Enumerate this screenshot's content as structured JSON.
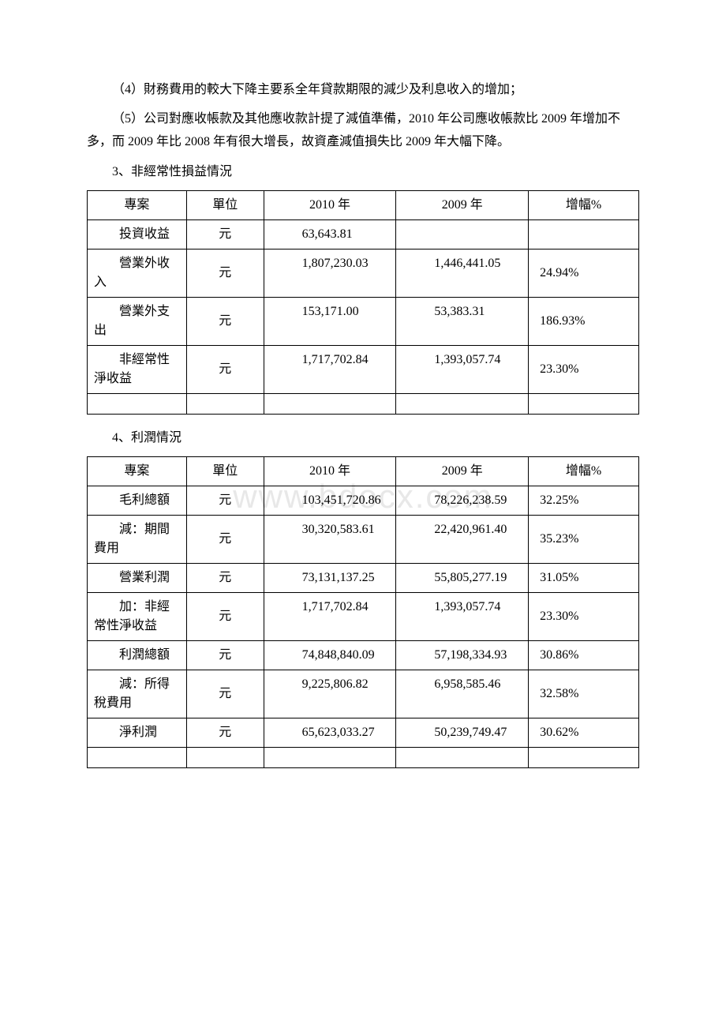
{
  "paragraphs": {
    "p4": "（4）財務費用的較大下降主要系全年貸款期限的減少及利息收入的增加；",
    "p5": "（5）公司對應收帳款及其他應收款計提了減值準備，2010 年公司應收帳款比 2009 年增加不多，而 2009 年比 2008 年有很大增長，故資產減值損失比 2009 年大幅下降。"
  },
  "section3": {
    "title": "3、非經常性損益情況",
    "headers": [
      "專案",
      "單位",
      "2010 年",
      "2009 年",
      "增幅%"
    ],
    "rows": [
      {
        "item": "投資收益",
        "unit": "元",
        "y2010": "63,643.81",
        "y2009": "",
        "pct": ""
      },
      {
        "item": "營業外收入",
        "unit": "元",
        "y2010": "1,807,230.03",
        "y2009": "1,446,441.05",
        "pct": "24.94%"
      },
      {
        "item": "營業外支出",
        "unit": "元",
        "y2010": "153,171.00",
        "y2009": "53,383.31",
        "pct": "186.93%"
      },
      {
        "item": "非經常性淨收益",
        "unit": "元",
        "y2010": "1,717,702.84",
        "y2009": "1,393,057.74",
        "pct": "23.30%"
      }
    ]
  },
  "section4": {
    "title": "4、利潤情況",
    "headers": [
      "專案",
      "單位",
      "2010 年",
      "2009 年",
      "增幅%"
    ],
    "rows": [
      {
        "item": "毛利總額",
        "unit": "元",
        "y2010": "103,451,720.86",
        "y2009": "78,226,238.59",
        "pct": "32.25%"
      },
      {
        "item": "減：期間費用",
        "unit": "元",
        "y2010": "30,320,583.61",
        "y2009": "22,420,961.40",
        "pct": "35.23%"
      },
      {
        "item": "營業利潤",
        "unit": "元",
        "y2010": "73,131,137.25",
        "y2009": "55,805,277.19",
        "pct": "31.05%"
      },
      {
        "item": "加：非經常性淨收益",
        "unit": "元",
        "y2010": "1,717,702.84",
        "y2009": "1,393,057.74",
        "pct": "23.30%"
      },
      {
        "item": "利潤總額",
        "unit": "元",
        "y2010": "74,848,840.09",
        "y2009": "57,198,334.93",
        "pct": "30.86%"
      },
      {
        "item": "減：所得稅費用",
        "unit": "元",
        "y2010": "9,225,806.82",
        "y2009": "6,958,585.46",
        "pct": "32.58%"
      },
      {
        "item": "淨利潤",
        "unit": "元",
        "y2010": "65,623,033.27",
        "y2009": "50,239,749.47",
        "pct": "30.62%"
      }
    ]
  },
  "watermark": "www.bdocx.com",
  "colors": {
    "text": "#000000",
    "background": "#ffffff",
    "border": "#000000",
    "watermark": "#e8e8e8"
  },
  "typography": {
    "body_fontsize": 16,
    "watermark_fontsize": 42,
    "font_family": "SimSun"
  }
}
